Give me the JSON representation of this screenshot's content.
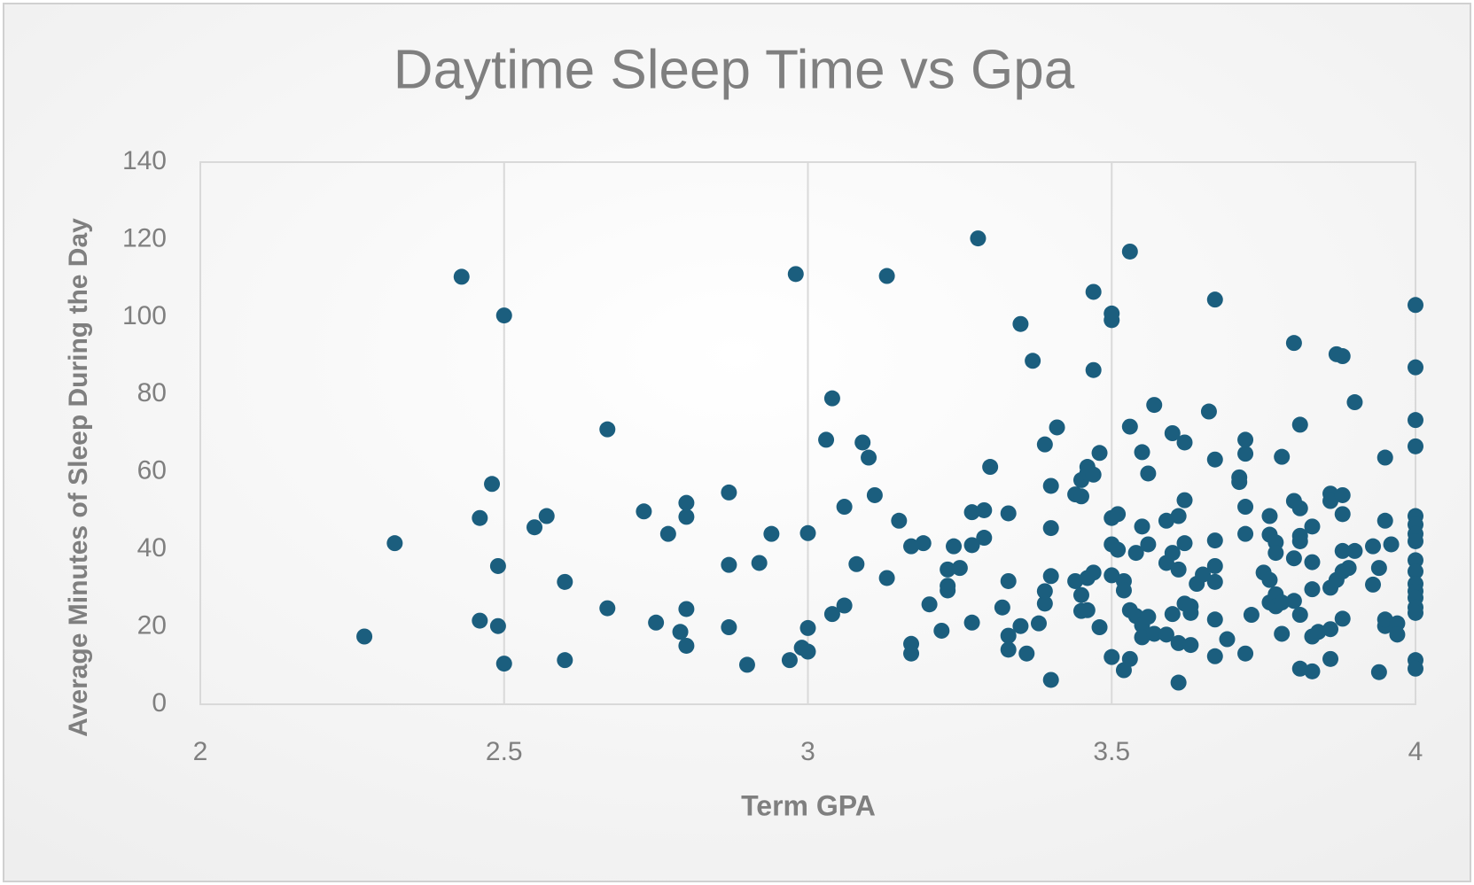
{
  "chart_data": {
    "type": "scatter",
    "title": "Daytime Sleep Time vs Gpa",
    "x_label": "Term GPA",
    "y_label": "Average Minutes of Sleep During the Day",
    "color": "#1b5e7e",
    "xlim": [
      2,
      4
    ],
    "ylim": [
      0,
      140
    ],
    "xticks": [
      2,
      2.5,
      3,
      3.5,
      4
    ],
    "yticks": [
      0,
      20,
      40,
      60,
      80,
      100,
      120,
      140
    ],
    "x_grid": true,
    "y_grid": false,
    "x": [
      2.27,
      2.32,
      2.43,
      2.5,
      2.46,
      2.46,
      2.48,
      2.49,
      2.49,
      2.5,
      2.55,
      2.57,
      2.6,
      2.6,
      2.67,
      2.67,
      2.73,
      2.75,
      2.77,
      2.79,
      2.8,
      2.8,
      2.8,
      2.8,
      2.87,
      2.87,
      2.87,
      2.9,
      2.92,
      2.94,
      2.97,
      2.98,
      2.99,
      3.0,
      3.0,
      3.0,
      3.03,
      3.04,
      3.04,
      3.06,
      3.06,
      3.08,
      3.09,
      3.1,
      3.11,
      3.13,
      3.13,
      3.15,
      3.17,
      3.17,
      3.17,
      3.19,
      3.2,
      3.22,
      3.23,
      3.23,
      3.23,
      3.24,
      3.25,
      3.27,
      3.27,
      3.27,
      3.28,
      3.29,
      3.29,
      3.3,
      3.32,
      3.33,
      3.33,
      3.33,
      3.33,
      3.35,
      3.35,
      3.36,
      3.37,
      3.38,
      3.39,
      3.39,
      3.39,
      3.4,
      3.4,
      3.4,
      3.4,
      3.41,
      3.44,
      3.44,
      3.45,
      3.45,
      3.45,
      3.45,
      3.46,
      3.46,
      3.46,
      3.46,
      3.47,
      3.47,
      3.47,
      3.47,
      3.48,
      3.48,
      3.5,
      3.5,
      3.5,
      3.5,
      3.5,
      3.5,
      3.51,
      3.51,
      3.52,
      3.52,
      3.52,
      3.53,
      3.53,
      3.53,
      3.53,
      3.54,
      3.54,
      3.55,
      3.55,
      3.55,
      3.55,
      3.56,
      3.56,
      3.56,
      3.57,
      3.57,
      3.59,
      3.59,
      3.59,
      3.6,
      3.6,
      3.6,
      3.61,
      3.61,
      3.61,
      3.61,
      3.62,
      3.62,
      3.62,
      3.62,
      3.63,
      3.63,
      3.63,
      3.64,
      3.65,
      3.66,
      3.67,
      3.67,
      3.67,
      3.67,
      3.67,
      3.67,
      3.67,
      3.69,
      3.71,
      3.71,
      3.72,
      3.72,
      3.72,
      3.72,
      3.72,
      3.73,
      3.75,
      3.76,
      3.76,
      3.76,
      3.76,
      3.77,
      3.77,
      3.77,
      3.77,
      3.78,
      3.78,
      3.78,
      3.8,
      3.8,
      3.8,
      3.8,
      3.81,
      3.81,
      3.81,
      3.81,
      3.81,
      3.81,
      3.83,
      3.83,
      3.83,
      3.83,
      3.83,
      3.84,
      3.86,
      3.86,
      3.86,
      3.86,
      3.86,
      3.87,
      3.87,
      3.88,
      3.88,
      3.88,
      3.88,
      3.88,
      3.88,
      3.89,
      3.9,
      3.9,
      3.93,
      3.93,
      3.94,
      3.94,
      3.95,
      3.95,
      3.95,
      3.95,
      3.96,
      3.97,
      3.97,
      4,
      4,
      4,
      4,
      4,
      4,
      4,
      4,
      4,
      4,
      4,
      4,
      4,
      4,
      4,
      4,
      4
    ],
    "values": [
      17.5,
      41.6,
      110.4,
      100.4,
      21.6,
      48.1,
      56.9,
      35.7,
      20.2,
      10.5,
      45.7,
      48.6,
      31.6,
      11.4,
      71.0,
      24.8,
      49.8,
      21.1,
      44.0,
      18.7,
      52.0,
      48.4,
      24.6,
      15.1,
      54.7,
      36.0,
      19.9,
      10.2,
      36.5,
      44.0,
      11.4,
      111.1,
      14.6,
      44.2,
      19.7,
      13.6,
      68.3,
      79.0,
      23.3,
      51.0,
      25.5,
      36.2,
      67.6,
      63.7,
      54.0,
      110.6,
      32.6,
      47.4,
      15.6,
      13.1,
      40.8,
      41.6,
      25.8,
      19.0,
      30.6,
      34.8,
      29.4,
      40.8,
      35.2,
      41.1,
      21.1,
      49.6,
      120.3,
      50.1,
      43.0,
      61.3,
      25.0,
      31.8,
      49.3,
      17.7,
      14.1,
      98.2,
      20.2,
      13.1,
      88.7,
      20.9,
      26.0,
      29.2,
      67.1,
      56.4,
      45.5,
      33.1,
      6.3,
      71.5,
      31.8,
      54.2,
      57.9,
      53.7,
      28.2,
      24.1,
      61.3,
      24.3,
      32.6,
      59.8,
      34.0,
      106.5,
      86.3,
      59.3,
      64.9,
      19.9,
      100.9,
      99.2,
      48.1,
      41.3,
      33.3,
      12.2,
      49.1,
      39.9,
      8.8,
      31.8,
      29.4,
      11.7,
      116.9,
      71.7,
      24.3,
      39.1,
      22.8,
      20.4,
      17.3,
      45.9,
      65.1,
      22.6,
      59.6,
      41.3,
      77.3,
      18.2,
      18.0,
      47.4,
      36.5,
      39.1,
      70.0,
      23.3,
      34.8,
      48.6,
      15.8,
      5.6,
      67.6,
      41.6,
      26.0,
      52.7,
      23.6,
      15.3,
      25.3,
      31.1,
      33.5,
      75.6,
      42.3,
      63.2,
      35.7,
      31.6,
      21.9,
      12.4,
      104.5,
      16.8,
      58.6,
      57.4,
      64.7,
      51.0,
      44.0,
      13.1,
      68.3,
      23.1,
      34.0,
      48.6,
      26.3,
      32.1,
      43.8,
      41.8,
      28.4,
      25.3,
      39.1,
      18.2,
      26.3,
      63.9,
      93.3,
      52.5,
      37.7,
      26.7,
      43.5,
      42.1,
      72.2,
      50.6,
      23.1,
      9.2,
      45.9,
      36.7,
      29.7,
      17.5,
      8.5,
      18.7,
      54.4,
      52.5,
      30.1,
      19.4,
      11.7,
      90.4,
      32.1,
      89.9,
      54.0,
      49.1,
      39.6,
      34.3,
      22.1,
      35.2,
      78.0,
      39.6,
      40.8,
      30.9,
      35.2,
      8.3,
      20.2,
      63.7,
      47.4,
      21.9,
      41.3,
      20.9,
      18.0,
      103.1,
      87.0,
      73.4,
      66.6,
      48.6,
      46.4,
      44.0,
      42.1,
      37.2,
      34.3,
      31.1,
      29.2,
      27.5,
      25.0,
      23.6,
      11.4,
      9.2
    ]
  }
}
